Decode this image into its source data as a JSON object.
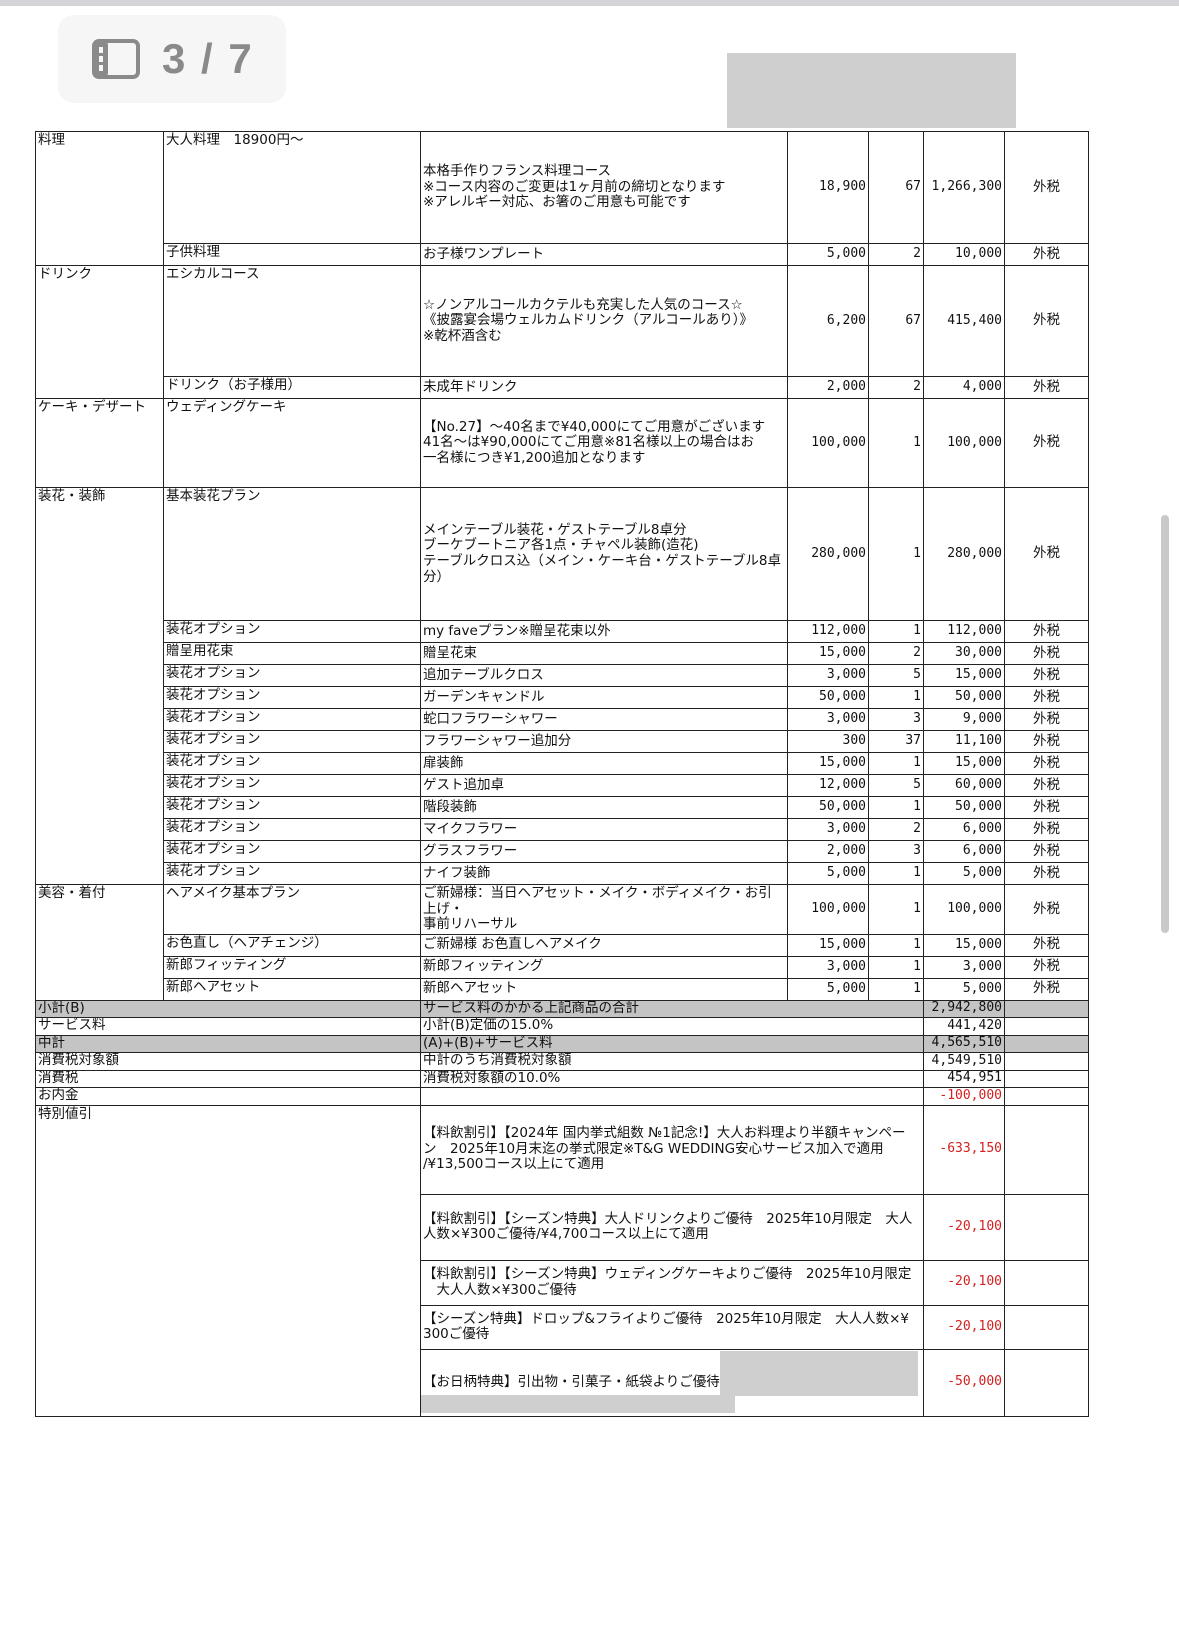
{
  "viewer": {
    "page_indicator": "3 / 7",
    "icon": "sidebar-icon"
  },
  "sections": [
    {
      "category": "料理",
      "rows": [
        {
          "item": "大人料理　18900円～",
          "desc": "本格手作りフランス料理コース\n※コース内容のご変更は1ヶ月前の締切となります\n※アレルギー対応、お箸のご用意も可能です",
          "price": "18,900",
          "qty": "67",
          "amount": "1,266,300",
          "tax": "外税"
        },
        {
          "item": "子供料理",
          "desc": "お子様ワンプレート",
          "price": "5,000",
          "qty": "2",
          "amount": "10,000",
          "tax": "外税"
        }
      ]
    },
    {
      "category": "ドリンク",
      "rows": [
        {
          "item": "エシカルコース",
          "desc": "☆ノンアルコールカクテルも充実した人気のコース☆\n《披露宴会場ウェルカムドリンク（アルコールあり）》\n※乾杯酒含む",
          "price": "6,200",
          "qty": "67",
          "amount": "415,400",
          "tax": "外税"
        },
        {
          "item": "ドリンク（お子様用）",
          "desc": "未成年ドリンク",
          "price": "2,000",
          "qty": "2",
          "amount": "4,000",
          "tax": "外税"
        }
      ]
    },
    {
      "category": "ケーキ・デザート",
      "rows": [
        {
          "item": "ウェディングケーキ",
          "desc": "【No.27】～40名まで¥40,000にてご用意がございます\n41名～は¥90,000にてご用意※81名様以上の場合はお\n一名様につき¥1,200追加となります",
          "price": "100,000",
          "qty": "1",
          "amount": "100,000",
          "tax": "外税"
        }
      ]
    },
    {
      "category": "装花・装飾",
      "rows": [
        {
          "item": "基本装花プラン",
          "desc": "メインテーブル装花・ゲストテーブル8卓分\nブーケブートニア各1点・チャペル装飾(造花)\nテーブルクロス込（メイン・ケーキ台・ゲストテーブル8卓分）",
          "price": "280,000",
          "qty": "1",
          "amount": "280,000",
          "tax": "外税"
        },
        {
          "item": "装花オプション",
          "desc": "my faveプラン※贈呈花束以外",
          "price": "112,000",
          "qty": "1",
          "amount": "112,000",
          "tax": "外税"
        },
        {
          "item": "贈呈用花束",
          "desc": "贈呈花束",
          "price": "15,000",
          "qty": "2",
          "amount": "30,000",
          "tax": "外税"
        },
        {
          "item": "装花オプション",
          "desc": "追加テーブルクロス",
          "price": "3,000",
          "qty": "5",
          "amount": "15,000",
          "tax": "外税"
        },
        {
          "item": "装花オプション",
          "desc": "ガーデンキャンドル",
          "price": "50,000",
          "qty": "1",
          "amount": "50,000",
          "tax": "外税"
        },
        {
          "item": "装花オプション",
          "desc": "蛇口フラワーシャワー",
          "price": "3,000",
          "qty": "3",
          "amount": "9,000",
          "tax": "外税"
        },
        {
          "item": "装花オプション",
          "desc": "フラワーシャワー追加分",
          "price": "300",
          "qty": "37",
          "amount": "11,100",
          "tax": "外税"
        },
        {
          "item": "装花オプション",
          "desc": "扉装飾",
          "price": "15,000",
          "qty": "1",
          "amount": "15,000",
          "tax": "外税"
        },
        {
          "item": "装花オプション",
          "desc": "ゲスト追加卓",
          "price": "12,000",
          "qty": "5",
          "amount": "60,000",
          "tax": "外税"
        },
        {
          "item": "装花オプション",
          "desc": "階段装飾",
          "price": "50,000",
          "qty": "1",
          "amount": "50,000",
          "tax": "外税"
        },
        {
          "item": "装花オプション",
          "desc": "マイクフラワー",
          "price": "3,000",
          "qty": "2",
          "amount": "6,000",
          "tax": "外税"
        },
        {
          "item": "装花オプション",
          "desc": "グラスフラワー",
          "price": "2,000",
          "qty": "3",
          "amount": "6,000",
          "tax": "外税"
        },
        {
          "item": "装花オプション",
          "desc": "ナイフ装飾",
          "price": "5,000",
          "qty": "1",
          "amount": "5,000",
          "tax": "外税"
        }
      ]
    },
    {
      "category": "美容・着付",
      "rows": [
        {
          "item": "ヘアメイク基本プラン",
          "desc": "ご新婦様：当日ヘアセット・メイク・ボディメイク・お引上げ・\n事前リハーサル",
          "price": "100,000",
          "qty": "1",
          "amount": "100,000",
          "tax": "外税"
        },
        {
          "item": "お色直し（ヘアチェンジ）",
          "desc": "ご新婦様 お色直しヘアメイク",
          "price": "15,000",
          "qty": "1",
          "amount": "15,000",
          "tax": "外税"
        },
        {
          "item": "新郎フィッティング",
          "desc": "新郎フィッティング",
          "price": "3,000",
          "qty": "1",
          "amount": "3,000",
          "tax": "外税"
        },
        {
          "item": "新郎ヘアセット",
          "desc": "新郎ヘアセット",
          "price": "5,000",
          "qty": "1",
          "amount": "5,000",
          "tax": "外税"
        }
      ]
    }
  ],
  "summary": [
    {
      "label": "小計(B)",
      "desc": "サービス料のかかる上記商品の合計",
      "amount": "2,942,800",
      "highlight": true
    },
    {
      "label": "サービス料",
      "desc": "小計(B)定価の15.0%",
      "amount": "441,420"
    },
    {
      "label": "中計",
      "desc": "(A)+(B)+サービス料",
      "amount": "4,565,510",
      "highlight": true
    },
    {
      "label": "消費税対象額",
      "desc": "中計のうち消費税対象額",
      "amount": "4,549,510"
    },
    {
      "label": "消費税",
      "desc": "消費税対象額の10.0%",
      "amount": "454,951"
    },
    {
      "label": "お内金",
      "desc": "",
      "amount": "-100,000",
      "negative": true
    }
  ],
  "discounts": {
    "label": "特別値引",
    "rows": [
      {
        "desc": "【料飲割引】【2024年 国内挙式組数 №1記念!】大人お料理より半額キャンペー\nン　2025年10月末迄の挙式限定※T&G WEDDING安心サービス加入で適用\n/¥13,500コース以上にて適用",
        "amount": "-633,150"
      },
      {
        "desc": "【料飲割引】【シーズン特典】大人ドリンクよりご優待　2025年10月限定　大人\n人数×¥300ご優待/¥4,700コース以上にて適用",
        "amount": "-20,100"
      },
      {
        "desc": "【料飲割引】【シーズン特典】ウェディングケーキよりご優待　2025年10月限定\n　大人人数×¥300ご優待",
        "amount": "-20,100"
      },
      {
        "desc": "【シーズン特典】ドロップ&フライよりご優待　2025年10月限定　大人人数×¥\n300ご優待",
        "amount": "-20,100"
      },
      {
        "desc": "【お日柄特典】引出物・引菓子・紙袋よりご優待",
        "amount": "-50,000"
      }
    ]
  },
  "colors": {
    "negative": "#d42020",
    "highlight_row": "#c4c4c4",
    "redaction": "#cfcfcf"
  }
}
